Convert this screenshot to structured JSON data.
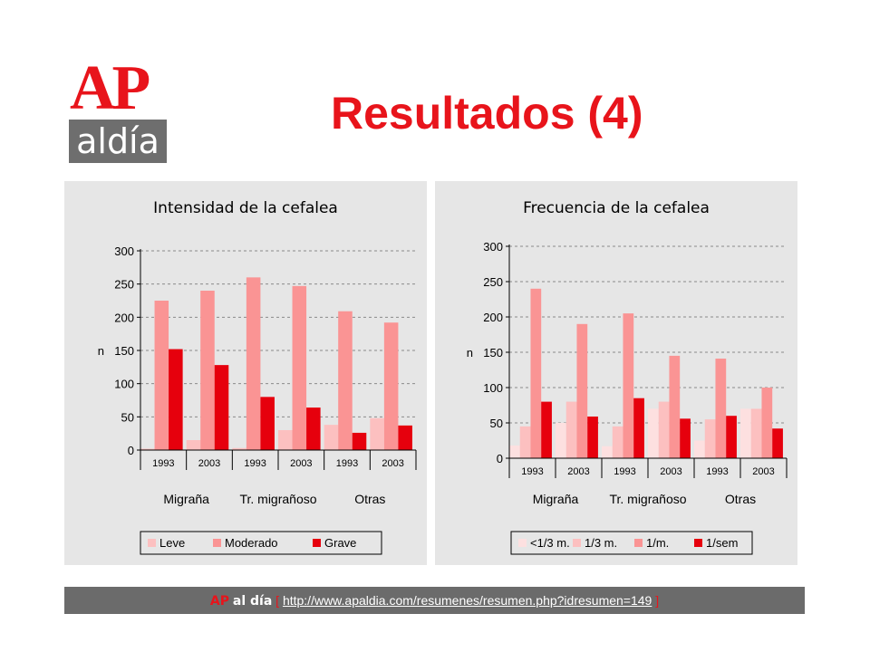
{
  "page": {
    "title": "Resultados (4)",
    "logo": {
      "top": "AP",
      "bottom": "aldía",
      "accent": "#e8141b",
      "box": "#6e6e6e"
    },
    "footer": {
      "brand_ap": "AP",
      "brand_rest": "al día",
      "open_bracket": "[",
      "url": "http://www.apaldia.com/resumenes/resumen.php?idresumen=149",
      "close_bracket": "]"
    }
  },
  "chart_data": [
    {
      "type": "bar",
      "title": "Intensidad de la cefalea",
      "ylabel": "n",
      "ylim": [
        0,
        300
      ],
      "yticks": [
        0,
        50,
        100,
        150,
        200,
        250,
        300
      ],
      "grid": true,
      "categories": [
        "1993",
        "2003",
        "1993",
        "2003",
        "1993",
        "2003"
      ],
      "groups": [
        "Migraña",
        "Tr. migrañoso",
        "Otras"
      ],
      "series": [
        {
          "name": "Leve",
          "color": "#fcc0c0",
          "values": [
            2,
            15,
            3,
            30,
            38,
            48
          ]
        },
        {
          "name": "Moderado",
          "color": "#fa9494",
          "values": [
            225,
            240,
            260,
            247,
            209,
            192
          ]
        },
        {
          "name": "Grave",
          "color": "#e6000d",
          "values": [
            152,
            128,
            80,
            64,
            26,
            37
          ]
        }
      ],
      "legend": "bottom"
    },
    {
      "type": "bar",
      "title": "Frecuencia de la cefalea",
      "ylabel": "n",
      "ylim": [
        0,
        300
      ],
      "yticks": [
        0,
        50,
        100,
        150,
        200,
        250,
        300
      ],
      "grid": true,
      "categories": [
        "1993",
        "2003",
        "1993",
        "2003",
        "1993",
        "2003"
      ],
      "groups": [
        "Migraña",
        "Tr. migrañoso",
        "Otras"
      ],
      "series": [
        {
          "name": "<1/3 m.",
          "color": "#fde0e0",
          "values": [
            18,
            50,
            17,
            70,
            25,
            70
          ]
        },
        {
          "name": "1/3 m.",
          "color": "#fcc0c0",
          "values": [
            45,
            80,
            45,
            80,
            55,
            70
          ]
        },
        {
          "name": "1/m.",
          "color": "#fa9494",
          "values": [
            240,
            190,
            205,
            145,
            141,
            100
          ]
        },
        {
          "name": "1/sem",
          "color": "#e6000d",
          "values": [
            80,
            59,
            85,
            56,
            60,
            42
          ]
        }
      ],
      "legend": "bottom"
    }
  ]
}
